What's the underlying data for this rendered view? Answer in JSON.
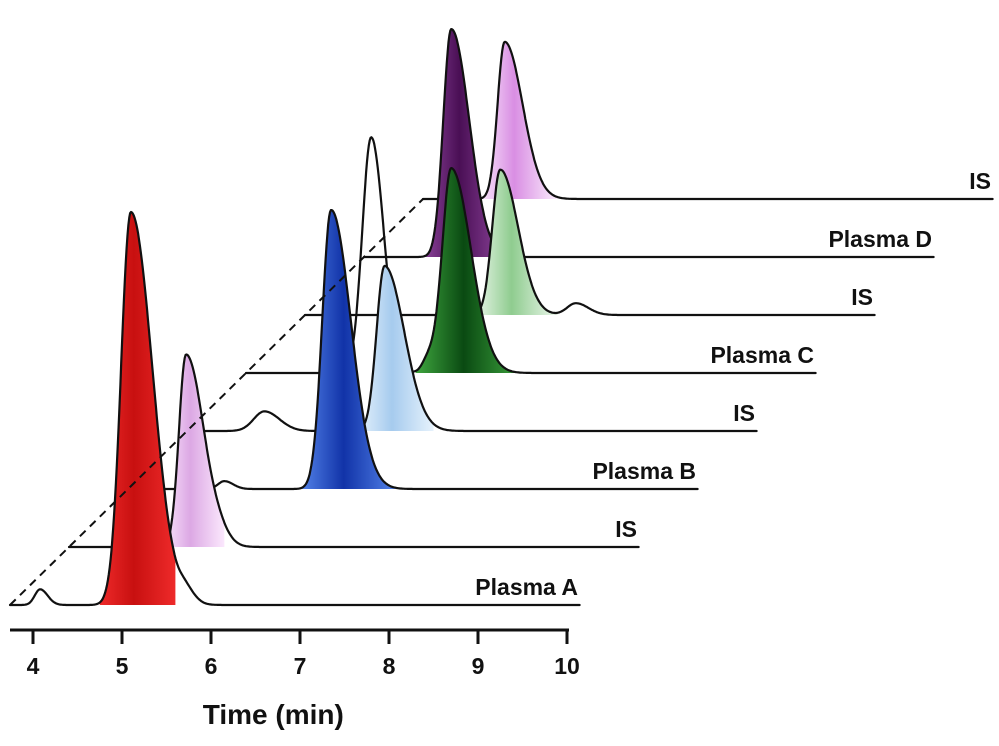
{
  "chart_data": {
    "type": "line",
    "subtype": "stacked-chromatograms",
    "xlabel": "Time (min)",
    "xlim": [
      3.8,
      10.2
    ],
    "x_ticks": [
      4,
      5,
      6,
      7,
      8,
      9,
      10
    ],
    "tick_labels": [
      "4",
      "5",
      "6",
      "7",
      "8",
      "9",
      "10"
    ],
    "series": [
      {
        "name": "Plasma A",
        "label": "Plasma A",
        "fill_color": "#c81010",
        "fill_light": "#ee2a2a",
        "peak_rt": 5.1,
        "peak_height": 1.0,
        "sigma": 0.11,
        "tail": 0.24,
        "fill_range": [
          4.75,
          5.6
        ],
        "minor_peaks": [
          [
            4.08,
            0.04,
            0.06
          ],
          [
            5.72,
            0.025,
            0.07
          ]
        ]
      },
      {
        "name": "IS",
        "label": "IS",
        "fill_color": "#dca8e4",
        "fill_light": "#fbe8fd",
        "peak_rt": 5.72,
        "peak_height": 0.49,
        "sigma": 0.08,
        "tail": 0.2,
        "fill_range": [
          5.45,
          6.15
        ],
        "minor_peaks": [
          [
            6.1,
            0.015,
            0.08
          ]
        ]
      },
      {
        "name": "Plasma B",
        "label": "Plasma B",
        "fill_color": "#1133a8",
        "fill_light": "#5b8cf0",
        "peak_rt": 7.35,
        "peak_height": 0.71,
        "sigma": 0.1,
        "tail": 0.22,
        "fill_range": [
          6.95,
          8.15
        ],
        "minor_peaks": [
          [
            6.15,
            0.02,
            0.07
          ]
        ]
      },
      {
        "name": "IS",
        "label": "IS",
        "fill_color": "#a6cbee",
        "fill_light": "#e6f2fc",
        "peak_rt": 7.95,
        "peak_height": 0.42,
        "sigma": 0.09,
        "tail": 0.22,
        "fill_range": [
          7.65,
          8.5
        ],
        "minor_peaks": [
          [
            6.6,
            0.05,
            0.12
          ]
        ]
      },
      {
        "name": "Plasma C",
        "label": "Plasma C",
        "fill_color": "#0a4a12",
        "fill_light": "#3fa63f",
        "peak_rt": 8.7,
        "peak_height": 0.52,
        "sigma": 0.1,
        "tail": 0.22,
        "fill_range": [
          8.3,
          9.5
        ],
        "minor_peaks": [
          [
            7.8,
            0.6,
            0.1
          ],
          [
            8.45,
            0.04,
            0.07
          ]
        ]
      },
      {
        "name": "IS",
        "label": "IS",
        "fill_color": "#8fcc8f",
        "fill_light": "#eef8ee",
        "peak_rt": 9.25,
        "peak_height": 0.37,
        "sigma": 0.09,
        "tail": 0.2,
        "fill_range": [
          8.95,
          9.9
        ],
        "minor_peaks": [
          [
            10.1,
            0.03,
            0.1
          ]
        ]
      },
      {
        "name": "Plasma D",
        "label": "Plasma D",
        "fill_color": "#4a0f55",
        "fill_light": "#a054b0",
        "peak_rt": 8.7,
        "peak_height": 0.58,
        "sigma": 0.09,
        "tail": 0.2,
        "fill_range": [
          8.25,
          9.45
        ],
        "minor_peaks": []
      },
      {
        "name": "IS",
        "label": "IS",
        "fill_color": "#d98ee3",
        "fill_light": "#fbeefd",
        "peak_rt": 9.3,
        "peak_height": 0.4,
        "sigma": 0.08,
        "tail": 0.2,
        "fill_range": [
          9.0,
          9.9
        ],
        "minor_peaks": []
      }
    ]
  }
}
